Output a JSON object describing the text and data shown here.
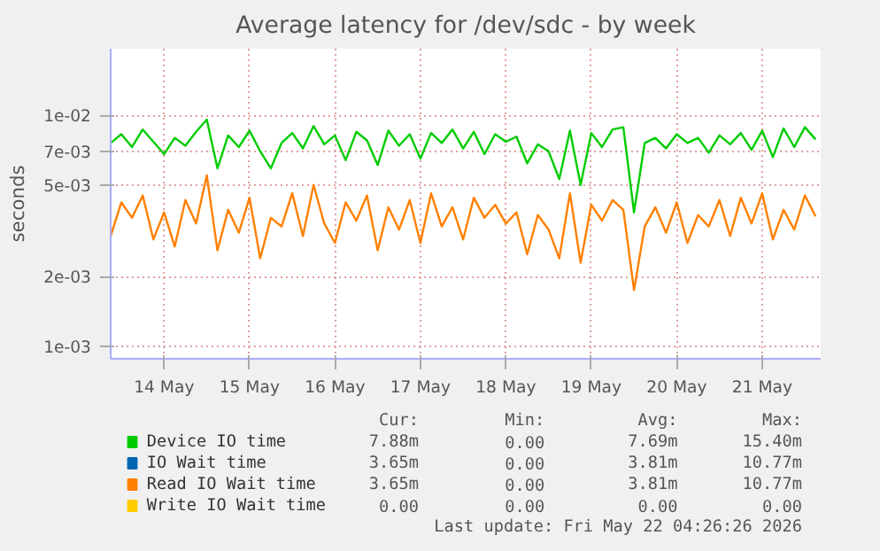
{
  "chart_data": {
    "type": "line",
    "title": "Average latency for /dev/sdc - by week",
    "ylabel": "seconds",
    "log": "y",
    "grid": true,
    "legend": "bottom",
    "marker": "none",
    "line_style": "solid",
    "x": [
      "2026-05-13T21:00",
      "2026-05-14T00:00",
      "2026-05-14T03:00",
      "2026-05-14T06:00",
      "2026-05-14T09:00",
      "2026-05-14T12:00",
      "2026-05-14T15:00",
      "2026-05-14T18:00",
      "2026-05-14T21:00",
      "2026-05-15T00:00",
      "2026-05-15T03:00",
      "2026-05-15T06:00",
      "2026-05-15T09:00",
      "2026-05-15T12:00",
      "2026-05-15T15:00",
      "2026-05-15T18:00",
      "2026-05-15T21:00",
      "2026-05-16T00:00",
      "2026-05-16T03:00",
      "2026-05-16T06:00",
      "2026-05-16T09:00",
      "2026-05-16T12:00",
      "2026-05-16T15:00",
      "2026-05-16T18:00",
      "2026-05-16T21:00",
      "2026-05-17T00:00",
      "2026-05-17T03:00",
      "2026-05-17T06:00",
      "2026-05-17T09:00",
      "2026-05-17T12:00",
      "2026-05-17T15:00",
      "2026-05-17T18:00",
      "2026-05-17T21:00",
      "2026-05-18T00:00",
      "2026-05-18T03:00",
      "2026-05-18T06:00",
      "2026-05-18T09:00",
      "2026-05-18T12:00",
      "2026-05-18T15:00",
      "2026-05-18T18:00",
      "2026-05-18T21:00",
      "2026-05-19T00:00",
      "2026-05-19T03:00",
      "2026-05-19T06:00",
      "2026-05-19T09:00",
      "2026-05-19T12:00",
      "2026-05-19T15:00",
      "2026-05-19T18:00",
      "2026-05-19T21:00",
      "2026-05-20T00:00",
      "2026-05-20T03:00",
      "2026-05-20T06:00",
      "2026-05-20T09:00",
      "2026-05-20T12:00",
      "2026-05-20T15:00",
      "2026-05-20T18:00",
      "2026-05-20T21:00",
      "2026-05-21T00:00",
      "2026-05-21T03:00",
      "2026-05-21T06:00",
      "2026-05-21T09:00",
      "2026-05-21T12:00",
      "2026-05-21T15:00",
      "2026-05-21T18:00",
      "2026-05-21T21:00",
      "2026-05-22T00:00",
      "2026-05-22T03:00"
    ],
    "xlim": [
      "2026-05-13T21:00",
      "2026-05-22T04:26"
    ],
    "xticks": [
      {
        "value": "2026-05-14T12:00",
        "label": "14 May"
      },
      {
        "value": "2026-05-15T12:00",
        "label": "15 May"
      },
      {
        "value": "2026-05-16T12:00",
        "label": "16 May"
      },
      {
        "value": "2026-05-17T12:00",
        "label": "17 May"
      },
      {
        "value": "2026-05-18T12:00",
        "label": "18 May"
      },
      {
        "value": "2026-05-19T12:00",
        "label": "19 May"
      },
      {
        "value": "2026-05-20T12:00",
        "label": "20 May"
      },
      {
        "value": "2026-05-21T12:00",
        "label": "21 May"
      }
    ],
    "ylim": [
      0.00088,
      0.0195
    ],
    "yticks": [
      {
        "value": 0.001,
        "label": "1e-03"
      },
      {
        "value": 0.002,
        "label": "2e-03"
      },
      {
        "value": 0.005,
        "label": "5e-03"
      },
      {
        "value": 0.007,
        "label": "7e-03"
      },
      {
        "value": 0.01,
        "label": "1e-02"
      }
    ],
    "series": [
      {
        "name": "Device IO time",
        "color": "#00cc00",
        "values": [
          0.0076,
          0.0083,
          0.0073,
          0.0087,
          0.0077,
          0.0068,
          0.008,
          0.0074,
          0.0085,
          0.0096,
          0.0059,
          0.0082,
          0.0073,
          0.0086,
          0.007,
          0.0059,
          0.0076,
          0.0084,
          0.0072,
          0.009,
          0.0075,
          0.0082,
          0.0064,
          0.0085,
          0.0078,
          0.0061,
          0.0086,
          0.0074,
          0.0083,
          0.0065,
          0.0084,
          0.0076,
          0.0087,
          0.0072,
          0.0085,
          0.0068,
          0.0083,
          0.0077,
          0.0081,
          0.0062,
          0.0075,
          0.007,
          0.0053,
          0.0086,
          0.005,
          0.0084,
          0.0073,
          0.0087,
          0.0089,
          0.0038,
          0.0076,
          0.008,
          0.0072,
          0.0083,
          0.0076,
          0.008,
          0.0069,
          0.0082,
          0.0075,
          0.0084,
          0.0071,
          0.0086,
          0.0066,
          0.0088,
          0.0073,
          0.0089,
          0.00788
        ]
      },
      {
        "name": "IO Wait time",
        "color": "#0066b3",
        "values": [
          null,
          null,
          null,
          null,
          null,
          null,
          null,
          null,
          null,
          null,
          null,
          null,
          null,
          null,
          null,
          null,
          null,
          null,
          null,
          null,
          null,
          null,
          null,
          null,
          null,
          null,
          null,
          null,
          null,
          null,
          null,
          null,
          null,
          null,
          null,
          null,
          null,
          null,
          null,
          null,
          null,
          null,
          null,
          null,
          null,
          null,
          null,
          null,
          null,
          null,
          null,
          null,
          null,
          null,
          null,
          null,
          null,
          null,
          null,
          null,
          null,
          null,
          null,
          null,
          null,
          null,
          null
        ]
      },
      {
        "name": "Read IO Wait time",
        "color": "#ff8000",
        "values": [
          0.003,
          0.0042,
          0.0036,
          0.0045,
          0.0029,
          0.0038,
          0.0027,
          0.0043,
          0.0034,
          0.0055,
          0.0026,
          0.0039,
          0.0031,
          0.0044,
          0.0024,
          0.0036,
          0.0033,
          0.0046,
          0.003,
          0.005,
          0.0034,
          0.0028,
          0.0042,
          0.0035,
          0.0045,
          0.0026,
          0.004,
          0.0032,
          0.0043,
          0.0028,
          0.0046,
          0.0033,
          0.004,
          0.0029,
          0.0044,
          0.0036,
          0.0041,
          0.0034,
          0.0038,
          0.0025,
          0.0037,
          0.0032,
          0.0024,
          0.0046,
          0.0023,
          0.0041,
          0.0035,
          0.0043,
          0.0039,
          0.00175,
          0.0033,
          0.004,
          0.0031,
          0.0042,
          0.0028,
          0.0037,
          0.0033,
          0.0043,
          0.003,
          0.0044,
          0.0034,
          0.0046,
          0.0029,
          0.0039,
          0.0032,
          0.0045,
          0.00365
        ]
      },
      {
        "name": "Write IO Wait time",
        "color": "#ffcc00",
        "values": [
          null,
          null,
          null,
          null,
          null,
          null,
          null,
          null,
          null,
          null,
          null,
          null,
          null,
          null,
          null,
          null,
          null,
          null,
          null,
          null,
          null,
          null,
          null,
          null,
          null,
          null,
          null,
          null,
          null,
          null,
          null,
          null,
          null,
          null,
          null,
          null,
          null,
          null,
          null,
          null,
          null,
          null,
          null,
          null,
          null,
          null,
          null,
          null,
          null,
          null,
          null,
          null,
          null,
          null,
          null,
          null,
          null,
          null,
          null,
          null,
          null,
          null,
          null,
          null,
          null,
          null,
          null
        ]
      }
    ],
    "annotations": [
      "Cur:",
      "Min:",
      "Avg:",
      "Max:",
      "7.88m",
      "0.00",
      "7.69m",
      "15.40m",
      "3.65m",
      "0.00",
      "3.81m",
      "10.77m",
      "3.65m",
      "0.00",
      "3.81m",
      "10.77m",
      "0.00",
      "0.00",
      "0.00",
      "0.00",
      "Last update: Fri May 22 04:26:26 2026"
    ]
  }
}
